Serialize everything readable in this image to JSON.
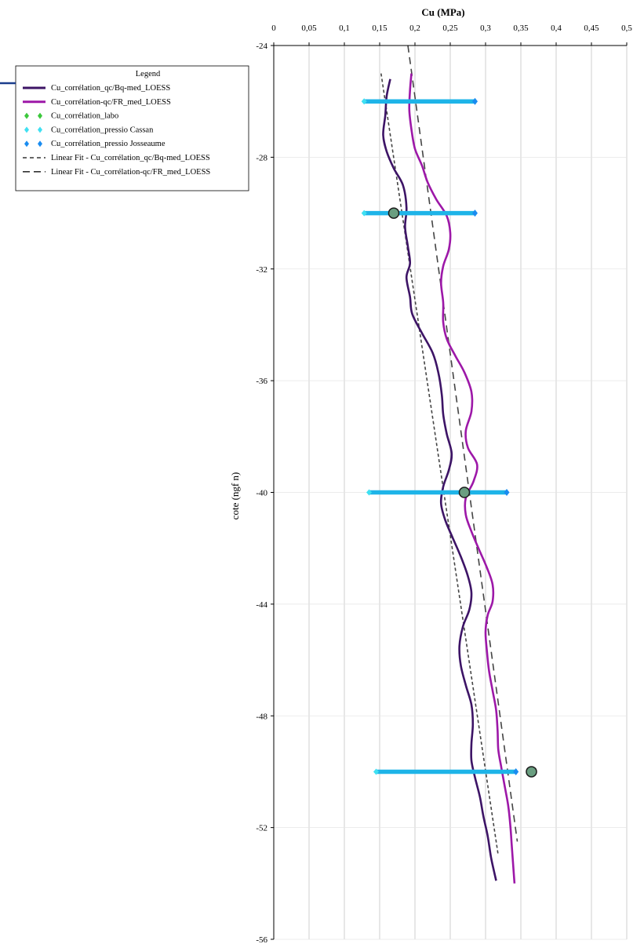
{
  "chart_data": {
    "type": "line",
    "title": "",
    "xlabel": "Cu (MPa)",
    "ylabel": "cote (ngf n)",
    "xlim": [
      0,
      0.5
    ],
    "ylim": [
      -56,
      -24
    ],
    "x_ticks": [
      "0",
      "0,05",
      "0,1",
      "0,15",
      "0,2",
      "0,25",
      "0,3",
      "0,35",
      "0,4",
      "0,45",
      "0,5"
    ],
    "y_ticks": [
      "-24",
      "-28",
      "-32",
      "-36",
      "-40",
      "-44",
      "-48",
      "-52",
      "-56"
    ],
    "x_axis_position": "top",
    "grid": "vertical",
    "legend": {
      "title": "Legend",
      "placement": "top-left",
      "entries": [
        "Cu_corrélation_qc/Bq-med_LOESS",
        "Cu_corrélation-qc/FR_med_LOESS",
        "Cu_corrélation_labo",
        "Cu_corrélation_pressio Cassan",
        "Cu_corrélation_pressio Josseaume",
        "Linear Fit - Cu_corrélation_qc/Bq-med_LOESS",
        "Linear Fit - Cu_corrélation-qc/FR_med_LOESS"
      ]
    },
    "colors": {
      "bq": "#3d1466",
      "fr": "#9d18a8",
      "labo": "#6a9e80",
      "cassan": "#1eb4e8",
      "josseaume": "#1a8cf0",
      "fit": "#444444"
    },
    "series": [
      {
        "name": "Cu_corrélation_qc/Bq-med_LOESS",
        "kind": "line",
        "points": [
          [
            0.165,
            -25.2
          ],
          [
            0.16,
            -25.8
          ],
          [
            0.158,
            -26.5
          ],
          [
            0.155,
            -27.2
          ],
          [
            0.16,
            -27.8
          ],
          [
            0.17,
            -28.4
          ],
          [
            0.183,
            -29.0
          ],
          [
            0.188,
            -29.8
          ],
          [
            0.186,
            -30.5
          ],
          [
            0.19,
            -31.2
          ],
          [
            0.193,
            -31.8
          ],
          [
            0.188,
            -32.3
          ],
          [
            0.193,
            -33.0
          ],
          [
            0.196,
            -33.6
          ],
          [
            0.21,
            -34.3
          ],
          [
            0.225,
            -35.0
          ],
          [
            0.233,
            -35.7
          ],
          [
            0.238,
            -36.5
          ],
          [
            0.24,
            -37.2
          ],
          [
            0.245,
            -37.9
          ],
          [
            0.252,
            -38.6
          ],
          [
            0.248,
            -39.2
          ],
          [
            0.24,
            -39.8
          ],
          [
            0.237,
            -40.4
          ],
          [
            0.243,
            -41.0
          ],
          [
            0.253,
            -41.6
          ],
          [
            0.265,
            -42.3
          ],
          [
            0.275,
            -43.0
          ],
          [
            0.28,
            -43.6
          ],
          [
            0.277,
            -44.2
          ],
          [
            0.268,
            -44.8
          ],
          [
            0.263,
            -45.5
          ],
          [
            0.265,
            -46.2
          ],
          [
            0.272,
            -46.9
          ],
          [
            0.28,
            -47.6
          ],
          [
            0.282,
            -48.3
          ],
          [
            0.28,
            -49.0
          ],
          [
            0.28,
            -49.6
          ],
          [
            0.285,
            -50.2
          ],
          [
            0.292,
            -50.9
          ],
          [
            0.297,
            -51.6
          ],
          [
            0.303,
            -52.3
          ],
          [
            0.308,
            -53.1
          ],
          [
            0.315,
            -53.9
          ]
        ]
      },
      {
        "name": "Cu_corrélation-qc/FR_med_LOESS",
        "kind": "line",
        "points": [
          [
            0.195,
            -25.0
          ],
          [
            0.193,
            -25.6
          ],
          [
            0.192,
            -26.3
          ],
          [
            0.195,
            -27.0
          ],
          [
            0.2,
            -27.7
          ],
          [
            0.21,
            -28.3
          ],
          [
            0.218,
            -28.9
          ],
          [
            0.23,
            -29.5
          ],
          [
            0.245,
            -30.1
          ],
          [
            0.25,
            -30.7
          ],
          [
            0.248,
            -31.3
          ],
          [
            0.24,
            -31.9
          ],
          [
            0.237,
            -32.5
          ],
          [
            0.24,
            -33.2
          ],
          [
            0.24,
            -33.9
          ],
          [
            0.245,
            -34.5
          ],
          [
            0.257,
            -35.1
          ],
          [
            0.27,
            -35.7
          ],
          [
            0.28,
            -36.4
          ],
          [
            0.28,
            -37.1
          ],
          [
            0.272,
            -37.8
          ],
          [
            0.275,
            -38.4
          ],
          [
            0.288,
            -39.0
          ],
          [
            0.283,
            -39.6
          ],
          [
            0.272,
            -40.2
          ],
          [
            0.272,
            -40.8
          ],
          [
            0.28,
            -41.4
          ],
          [
            0.29,
            -42.0
          ],
          [
            0.302,
            -42.7
          ],
          [
            0.31,
            -43.3
          ],
          [
            0.31,
            -43.9
          ],
          [
            0.303,
            -44.4
          ],
          [
            0.3,
            -45.0
          ],
          [
            0.302,
            -45.7
          ],
          [
            0.305,
            -46.4
          ],
          [
            0.31,
            -47.1
          ],
          [
            0.315,
            -47.8
          ],
          [
            0.317,
            -48.5
          ],
          [
            0.318,
            -49.2
          ],
          [
            0.322,
            -49.8
          ],
          [
            0.327,
            -50.5
          ],
          [
            0.332,
            -51.2
          ],
          [
            0.335,
            -51.9
          ],
          [
            0.337,
            -52.6
          ],
          [
            0.339,
            -53.3
          ],
          [
            0.341,
            -54.0
          ]
        ]
      },
      {
        "name": "Linear Fit - Cu_corrélation_qc/Bq-med_LOESS",
        "kind": "dashed-fit",
        "points": [
          [
            0.152,
            -25.0
          ],
          [
            0.318,
            -53.0
          ]
        ]
      },
      {
        "name": "Linear Fit - Cu_corrélation-qc/FR_med_LOESS",
        "kind": "dashed-fit",
        "points": [
          [
            0.19,
            -24.0
          ],
          [
            0.345,
            -52.5
          ]
        ]
      },
      {
        "name": "Cu_corrélation_pressio Cassan",
        "kind": "range",
        "ranges": [
          {
            "y": -26.0,
            "x_min": 0.128,
            "x_max": 0.285
          },
          {
            "y": -30.0,
            "x_min": 0.128,
            "x_max": 0.285
          },
          {
            "y": -40.0,
            "x_min": 0.135,
            "x_max": 0.33
          },
          {
            "y": -50.0,
            "x_min": 0.145,
            "x_max": 0.343
          }
        ]
      },
      {
        "name": "Cu_corrélation_pressio Josseaume",
        "kind": "points",
        "points": [
          [
            0.285,
            -26.0
          ],
          [
            0.285,
            -30.0
          ],
          [
            0.33,
            -40.0
          ],
          [
            0.343,
            -50.0
          ]
        ]
      },
      {
        "name": "Cu_corrélation_labo",
        "kind": "points",
        "points": [
          [
            0.17,
            -30.0
          ],
          [
            0.27,
            -40.0
          ],
          [
            0.365,
            -50.0
          ]
        ]
      }
    ]
  }
}
